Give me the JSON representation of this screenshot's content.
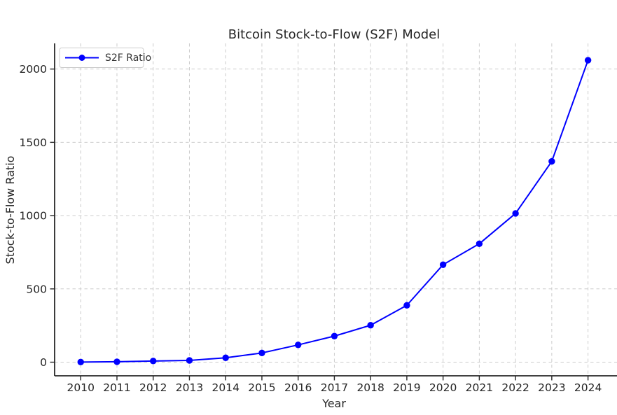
{
  "figure": {
    "background": "#ffffff"
  },
  "chart_data": {
    "type": "line",
    "title": "Bitcoin Stock-to-Flow (S2F) Model",
    "xlabel": "Year",
    "ylabel": "Stock-to-Flow Ratio",
    "x": [
      2010,
      2011,
      2012,
      2013,
      2014,
      2015,
      2016,
      2017,
      2018,
      2019,
      2020,
      2021,
      2022,
      2023,
      2024
    ],
    "series": [
      {
        "name": "S2F Ratio",
        "color": "#0000ff",
        "marker": "circle",
        "values": [
          1,
          3,
          8,
          12,
          30,
          63,
          118,
          178,
          252,
          388,
          665,
          808,
          1015,
          1370,
          2060
        ]
      }
    ],
    "yticks": [
      0,
      500,
      1000,
      1500,
      2000
    ],
    "xlim": [
      2009.28,
      2024.8
    ],
    "ylim": [
      -93,
      2175
    ],
    "grid": {
      "visible": true,
      "style": "dashed",
      "color": "#cccccc"
    },
    "legend": {
      "visible": true,
      "position": "upper left"
    },
    "axis_color": "#262626",
    "text_color": "#262626"
  }
}
